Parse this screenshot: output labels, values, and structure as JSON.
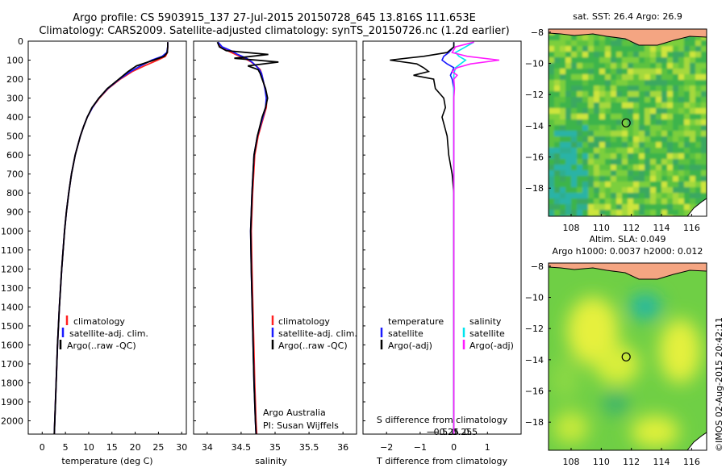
{
  "header": {
    "line1": "Argo profile: CS 5903915_137 27-Jul-2015 20150728_645 13.816S 111.653E",
    "line2": "Climatology: CARS2009. Satellite-adjusted climatology: synTS_20150726.nc (1.2d earlier)"
  },
  "colors": {
    "climatology": "#ff2020",
    "satellite": "#1a1aff",
    "argo": "#000000",
    "sal_satellite": "#00e5ee",
    "sal_argo": "#ff1aff",
    "land": "#f4a582",
    "sst_base": "#3cb44b",
    "sea_teal": "#2ab3a6"
  },
  "chart_data": [
    {
      "type": "line",
      "title": "",
      "xlabel": "temperature (deg C)",
      "ylabel": "",
      "xlim": [
        -3,
        31
      ],
      "ylim": [
        0,
        2070
      ],
      "x_ticks": [
        0,
        5,
        10,
        15,
        20,
        25,
        30
      ],
      "y_ticks": [
        0,
        100,
        200,
        300,
        400,
        500,
        600,
        700,
        800,
        900,
        1000,
        1100,
        1200,
        1300,
        1400,
        1500,
        1600,
        1700,
        1800,
        1900,
        2000
      ],
      "legend": [
        "climatology",
        "satellite-adj. clim.",
        "Argo(..raw -QC)"
      ],
      "depth": [
        5,
        30,
        60,
        80,
        100,
        130,
        160,
        200,
        250,
        300,
        350,
        400,
        450,
        500,
        600,
        700,
        800,
        900,
        1000,
        1200,
        1400,
        1600,
        1800,
        2000,
        2070
      ],
      "series": [
        {
          "name": "climatology",
          "values": [
            27.0,
            27.0,
            26.9,
            26.5,
            24.8,
            22.0,
            19.4,
            16.8,
            14.2,
            12.3,
            10.8,
            9.7,
            8.9,
            8.2,
            7.1,
            6.3,
            5.7,
            5.2,
            4.8,
            4.2,
            3.7,
            3.3,
            3.0,
            2.7,
            2.6
          ]
        },
        {
          "name": "satellite",
          "values": [
            27.0,
            27.0,
            26.8,
            25.8,
            23.6,
            21.2,
            19.0,
            16.6,
            14.1,
            12.2,
            10.8,
            9.7,
            8.9,
            8.2,
            7.1,
            6.3,
            5.7,
            5.2,
            4.8,
            4.2,
            3.7,
            3.3,
            3.0,
            2.7,
            2.6
          ]
        },
        {
          "name": "argo",
          "values": [
            27.0,
            27.0,
            26.9,
            26.2,
            24.0,
            20.3,
            18.5,
            16.5,
            14.0,
            12.2,
            10.7,
            9.7,
            8.9,
            8.2,
            7.1,
            6.3,
            5.7,
            5.2,
            4.8,
            4.2,
            3.7,
            3.3,
            3.0,
            2.7,
            2.6
          ]
        }
      ]
    },
    {
      "type": "line",
      "title": "",
      "xlabel": "salinity",
      "ylabel": "",
      "xlim": [
        33.8,
        36.2
      ],
      "ylim": [
        0,
        2070
      ],
      "x_ticks": [
        34,
        34.5,
        35,
        35.5,
        36
      ],
      "legend": [
        "climatology",
        "satellite-adj. clim.",
        "Argo(..raw -QC)"
      ],
      "annotation": "Argo Australia",
      "annotation2": "PI: Susan Wijffels",
      "depth": [
        5,
        30,
        50,
        70,
        90,
        110,
        130,
        150,
        170,
        200,
        250,
        300,
        350,
        400,
        500,
        600,
        800,
        1000,
        1200,
        1500,
        1800,
        2000,
        2070
      ],
      "series": [
        {
          "name": "climatology",
          "values": [
            34.16,
            34.2,
            34.3,
            34.42,
            34.55,
            34.65,
            34.72,
            34.78,
            34.8,
            34.82,
            34.85,
            34.88,
            34.87,
            34.83,
            34.75,
            34.7,
            34.67,
            34.65,
            34.66,
            34.68,
            34.7,
            34.72,
            34.73
          ]
        },
        {
          "name": "satellite",
          "values": [
            34.16,
            34.22,
            34.35,
            34.45,
            34.58,
            34.66,
            34.72,
            34.77,
            34.8,
            34.82,
            34.85,
            34.87,
            34.86,
            34.82,
            34.74,
            34.69,
            34.66,
            34.64,
            34.65,
            34.67,
            34.69,
            34.71,
            34.72
          ]
        },
        {
          "name": "argo",
          "values": [
            34.15,
            34.18,
            34.28,
            34.9,
            34.4,
            35.05,
            34.6,
            34.75,
            34.78,
            34.81,
            34.86,
            34.89,
            34.86,
            34.81,
            34.74,
            34.69,
            34.66,
            34.64,
            34.65,
            34.67,
            34.69,
            34.71,
            34.72
          ]
        }
      ]
    },
    {
      "type": "line",
      "title": "S difference from climatology",
      "xlabel": "T difference from climatology",
      "ylabel": "",
      "xlim": [
        -2.7,
        2.0
      ],
      "ylim": [
        0,
        2070
      ],
      "x_ticks": [
        -2,
        -1,
        0,
        1
      ],
      "x_tick_labels": [
        "−2",
        "−1",
        "0",
        "1"
      ],
      "s_ticks": [
        -0.5,
        -0.25,
        0,
        0.25,
        0.5
      ],
      "s_tick_labels": [
        "−0.5",
        "−0.25",
        "0",
        "0.25",
        "0.5"
      ],
      "legend_temperature": "temperature",
      "legend_salinity": "salinity",
      "legend_satellite": "satellite",
      "legend_argo": "Argo(-adj)",
      "depth": [
        5,
        30,
        60,
        80,
        100,
        120,
        140,
        160,
        180,
        200,
        250,
        300,
        350,
        400,
        500,
        600,
        700,
        800,
        900,
        1000,
        1200,
        1500,
        1800,
        2000,
        2070
      ],
      "series": [
        {
          "name": "temperature satellite",
          "values": [
            0.0,
            0.0,
            -0.15,
            -0.3,
            -0.35,
            -0.2,
            0.0,
            -0.05,
            -0.1,
            -0.05,
            0.0,
            0.0,
            0.0,
            0.0,
            0.0,
            0.0,
            0.0,
            0.0,
            0.0,
            0.0,
            0.0,
            0.0,
            0.0,
            0.0,
            0.0
          ]
        },
        {
          "name": "temperature argo",
          "values": [
            0.0,
            0.0,
            -0.2,
            -0.9,
            -1.9,
            -1.1,
            -0.9,
            -0.75,
            -1.2,
            -0.6,
            -0.55,
            -0.3,
            -0.25,
            -0.35,
            -0.2,
            -0.15,
            -0.05,
            0.0,
            0.0,
            0.0,
            0.0,
            0.0,
            0.0,
            0.0,
            0.0
          ]
        },
        {
          "name": "salinity satellite",
          "values": [
            0.6,
            0.35,
            0.05,
            0.15,
            0.35,
            0.2,
            0.05,
            0.02,
            0.0,
            0.0,
            0.0,
            0.0,
            0.0,
            0.0,
            0.0,
            0.0,
            0.0,
            0.0,
            0.0,
            0.0,
            0.0,
            0.0,
            0.0,
            0.0,
            0.0
          ]
        },
        {
          "name": "salinity argo",
          "values": [
            0.6,
            0.05,
            -0.05,
            0.4,
            1.35,
            0.5,
            0.1,
            -0.05,
            0.1,
            0.0,
            0.02,
            0.0,
            0.0,
            0.0,
            0.0,
            0.0,
            0.0,
            0.0,
            0.0,
            0.0,
            0.0,
            0.0,
            0.0,
            0.0,
            0.0
          ]
        }
      ]
    },
    {
      "type": "heatmap",
      "title": "sat. SST: 26.4  Argo: 26.9",
      "xlim": [
        106.5,
        117
      ],
      "ylim": [
        -19.8,
        -7.8
      ],
      "x_ticks": [
        108,
        110,
        112,
        114,
        116
      ],
      "y_ticks": [
        -8,
        -10,
        -12,
        -14,
        -16,
        -18
      ],
      "marker": {
        "lon": 111.653,
        "lat": -13.816
      }
    },
    {
      "type": "heatmap",
      "title": "Altim. SLA: 0.049",
      "subtitle": "Argo h1000: 0.0037  h2000: 0.012",
      "xlim": [
        106.5,
        117
      ],
      "ylim": [
        -19.8,
        -7.8
      ],
      "x_ticks": [
        108,
        110,
        112,
        114,
        116
      ],
      "y_ticks": [
        -8,
        -10,
        -12,
        -14,
        -16,
        -18
      ],
      "marker": {
        "lon": 111.653,
        "lat": -13.816
      }
    }
  ],
  "footer": {
    "stamp": "©IMOS 02-Aug-2015 20:42:11"
  }
}
